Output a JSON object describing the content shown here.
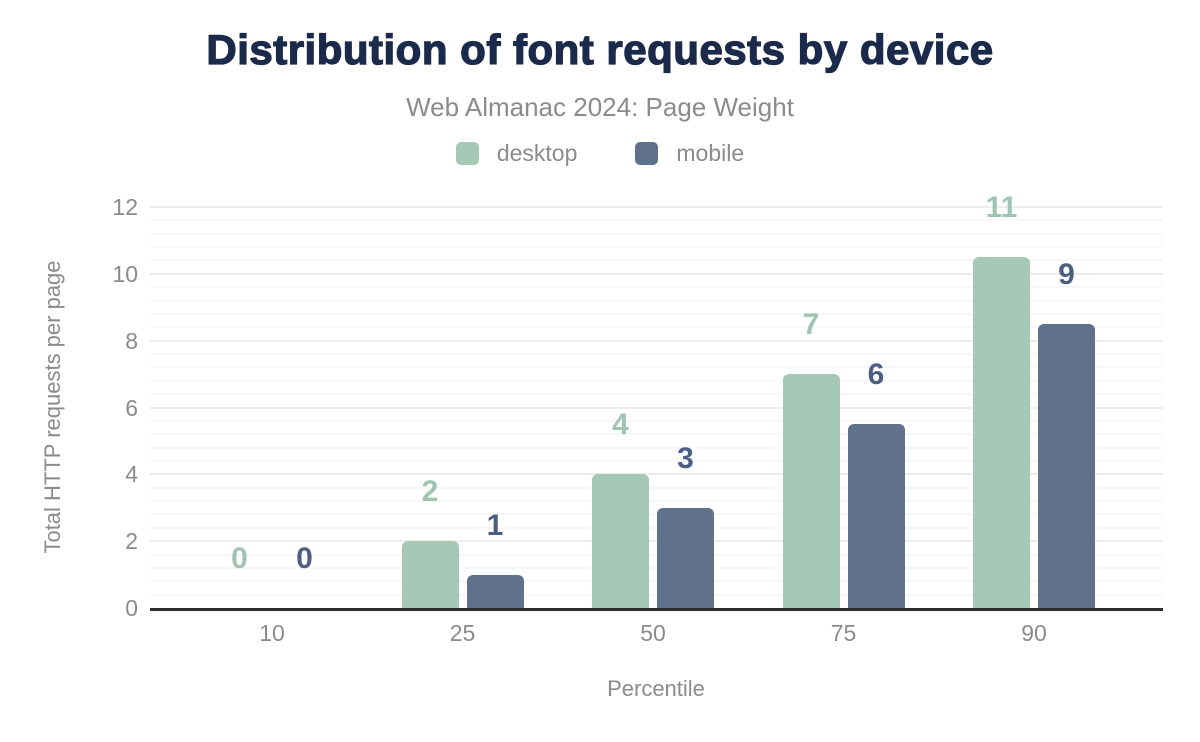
{
  "title": "Distribution of font requests by device",
  "subtitle": "Web Almanac 2024: Page Weight",
  "colors": {
    "title": "#1b2a4a",
    "secondary_text": "#8b8b8b",
    "axis_line": "#2d2d2d",
    "grid_major": "#ececec",
    "grid_minor": "#f7f7f7"
  },
  "chart_data": {
    "type": "bar",
    "title": "Distribution of font requests by device",
    "subtitle": "Web Almanac 2024: Page Weight",
    "xlabel": "Percentile",
    "ylabel": "Total HTTP requests per page",
    "categories": [
      "10",
      "25",
      "50",
      "75",
      "90"
    ],
    "series": [
      {
        "name": "desktop",
        "color": "#a5c8b7",
        "label_color": "#9fc4b2",
        "values": [
          0,
          2,
          4,
          7,
          10.5
        ],
        "labels": [
          "0",
          "2",
          "4",
          "7",
          "11"
        ]
      },
      {
        "name": "mobile",
        "color": "#60718c",
        "label_color": "#4c5e82",
        "values": [
          0,
          1,
          3,
          5.5,
          8.5
        ],
        "labels": [
          "0",
          "1",
          "3",
          "6",
          "9"
        ]
      }
    ],
    "ylim": [
      0,
      12
    ],
    "yticks": [
      0,
      2,
      4,
      6,
      8,
      10,
      12
    ],
    "grid": true,
    "legend_position": "top"
  }
}
